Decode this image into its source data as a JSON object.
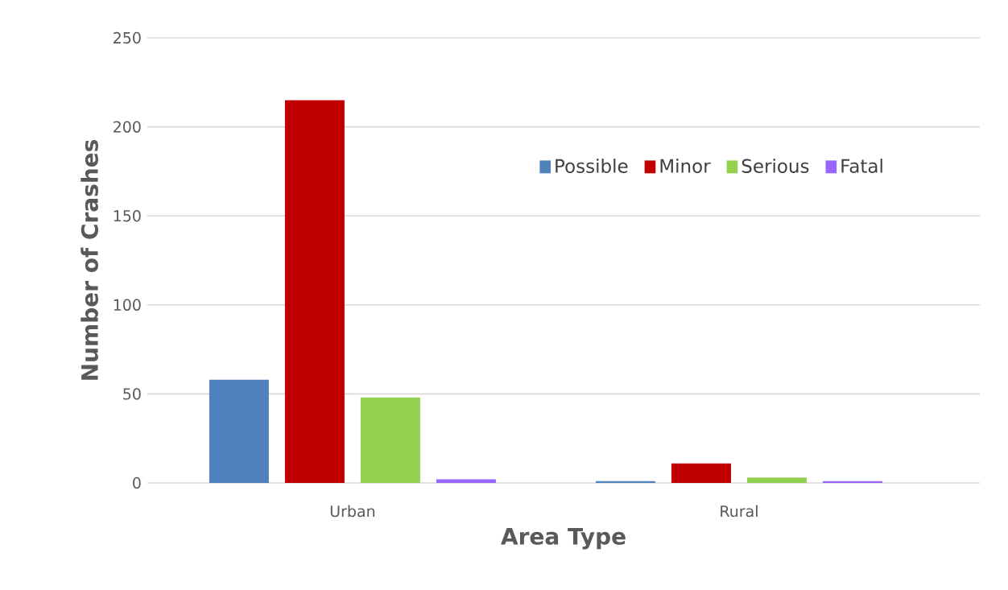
{
  "chart_data": {
    "type": "bar",
    "xlabel": "Area Type",
    "ylabel": "Number of Crashes",
    "categories": [
      "Urban",
      "Rural"
    ],
    "series": [
      {
        "name": "Possible",
        "color": "#4f81bd",
        "values": [
          58,
          1
        ]
      },
      {
        "name": "Minor",
        "color": "#c00000",
        "values": [
          215,
          11
        ]
      },
      {
        "name": "Serious",
        "color": "#92d050",
        "values": [
          48,
          3
        ]
      },
      {
        "name": "Fatal",
        "color": "#9966ff",
        "values": [
          2,
          1
        ]
      }
    ],
    "ylim": [
      0,
      250
    ],
    "yticks": [
      0,
      50,
      100,
      150,
      200,
      250
    ],
    "grid": "y",
    "legend": "top right"
  }
}
